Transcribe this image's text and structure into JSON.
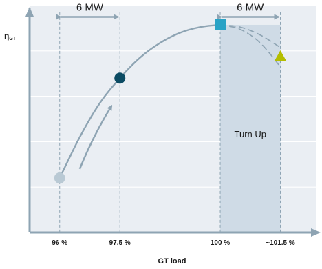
{
  "chart_data": {
    "type": "line",
    "ylabel_main": "η",
    "ylabel_sub": "GT",
    "xlabel": "GT load",
    "x_ticks": [
      {
        "value": 96,
        "label": "96 %"
      },
      {
        "value": 97.5,
        "label": "97.5 %"
      },
      {
        "value": 100,
        "label": "100 %"
      },
      {
        "value": 101.5,
        "label": "~101.5 %"
      }
    ],
    "xlim": [
      95.25,
      102.4
    ],
    "ylim": [
      0,
      1
    ],
    "grid": true,
    "background": "#eaeef3",
    "region": {
      "x_start": 100,
      "x_end": 101.5,
      "label": "Turn Up",
      "color": "#cfdbe6"
    },
    "series": [
      {
        "role": "efficiency-curve",
        "style": "solid",
        "color": "#8ea4b3",
        "points": [
          [
            96,
            0.24
          ],
          [
            96.5,
            0.42
          ],
          [
            97,
            0.57
          ],
          [
            97.5,
            0.68
          ],
          [
            98,
            0.77
          ],
          [
            98.5,
            0.835
          ],
          [
            99,
            0.88
          ],
          [
            99.5,
            0.905
          ],
          [
            100,
            0.915
          ]
        ]
      },
      {
        "role": "turn-up-path-upper",
        "style": "dashed",
        "color": "#8ea4b3",
        "points": [
          [
            100,
            0.915
          ],
          [
            100.5,
            0.905
          ],
          [
            101,
            0.87
          ],
          [
            101.5,
            0.815
          ]
        ]
      },
      {
        "role": "turn-up-path-lower",
        "style": "dashed",
        "color": "#8ea4b3",
        "points": [
          [
            100,
            0.915
          ],
          [
            100.5,
            0.895
          ],
          [
            101,
            0.835
          ],
          [
            101.5,
            0.73
          ]
        ]
      }
    ],
    "markers": [
      {
        "shape": "circle",
        "x": 96,
        "y": 0.24,
        "color": "#b9c9d4"
      },
      {
        "shape": "circle",
        "x": 97.5,
        "y": 0.68,
        "color": "#0b4b63"
      },
      {
        "shape": "square",
        "x": 100,
        "y": 0.915,
        "color": "#2aa3c6"
      },
      {
        "shape": "triangle",
        "x": 101.5,
        "y": 0.775,
        "color": "#b4bd00"
      }
    ],
    "direction_arrow": {
      "from": [
        96.5,
        0.28
      ],
      "to": [
        97.3,
        0.56
      ],
      "color": "#8ea4b3"
    },
    "spans": [
      {
        "x_start": 96,
        "x_end": 97.5,
        "y": 0.95,
        "label": "6 MW"
      },
      {
        "x_start": 100,
        "x_end": 101.5,
        "y": 0.95,
        "label": "6 MW"
      }
    ],
    "colors": {
      "axis": "#8ea4b3",
      "grid": "#ffffff",
      "text": "#1a1a1a"
    }
  }
}
